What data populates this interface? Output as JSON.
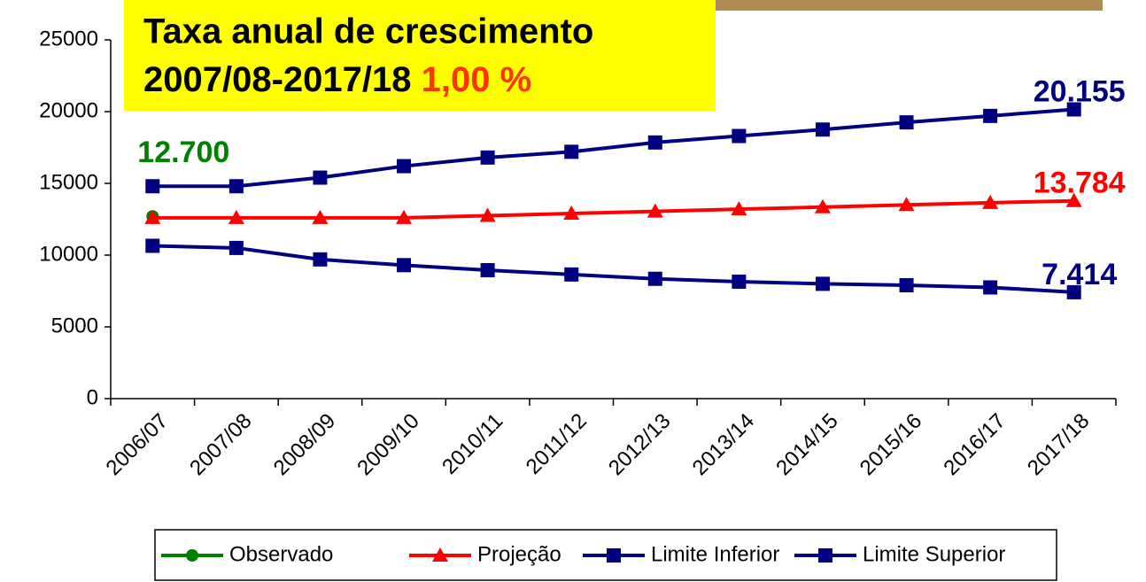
{
  "chart_data": {
    "type": "line",
    "annotation": [
      "Taxa anual de crescimento",
      "2007/08-2017/18",
      "1,00 %"
    ],
    "categories": [
      "2006/07",
      "2007/08",
      "2008/09",
      "2009/10",
      "2010/11",
      "2011/12",
      "2012/13",
      "2013/14",
      "2014/15",
      "2015/16",
      "2016/17",
      "2017/18"
    ],
    "series": [
      {
        "name": "Observado",
        "color": "#008000",
        "marker": "circle",
        "values": [
          12700,
          null,
          null,
          null,
          null,
          null,
          null,
          null,
          null,
          null,
          null,
          null
        ],
        "value_labels": [
          "12.700",
          null,
          null,
          null,
          null,
          null,
          null,
          null,
          null,
          null,
          null,
          null
        ]
      },
      {
        "name": "Projeção",
        "color": "#ff0000",
        "marker": "triangle",
        "values": [
          12600,
          12600,
          12600,
          12600,
          12750,
          12900,
          13050,
          13200,
          13350,
          13500,
          13650,
          13784
        ],
        "value_labels": [
          null,
          null,
          null,
          null,
          null,
          null,
          null,
          null,
          null,
          null,
          null,
          "13.784"
        ]
      },
      {
        "name": "Limite Inferior",
        "color": "#000080",
        "marker": "square",
        "values": [
          10650,
          10500,
          9700,
          9300,
          8950,
          8650,
          8350,
          8150,
          8000,
          7900,
          7750,
          7414
        ],
        "value_labels": [
          null,
          null,
          null,
          null,
          null,
          null,
          null,
          null,
          null,
          null,
          null,
          "7.414"
        ]
      },
      {
        "name": "Limite Superior",
        "color": "#000080",
        "marker": "square",
        "values": [
          14800,
          14800,
          15400,
          16200,
          16800,
          17200,
          17850,
          18300,
          18750,
          19250,
          19700,
          20155
        ],
        "value_labels": [
          null,
          null,
          null,
          null,
          null,
          null,
          null,
          null,
          null,
          null,
          null,
          "20.155"
        ]
      }
    ],
    "ylim": [
      0,
      25000
    ],
    "yticks": [
      0,
      5000,
      10000,
      15000,
      20000,
      25000
    ],
    "grid": false
  }
}
